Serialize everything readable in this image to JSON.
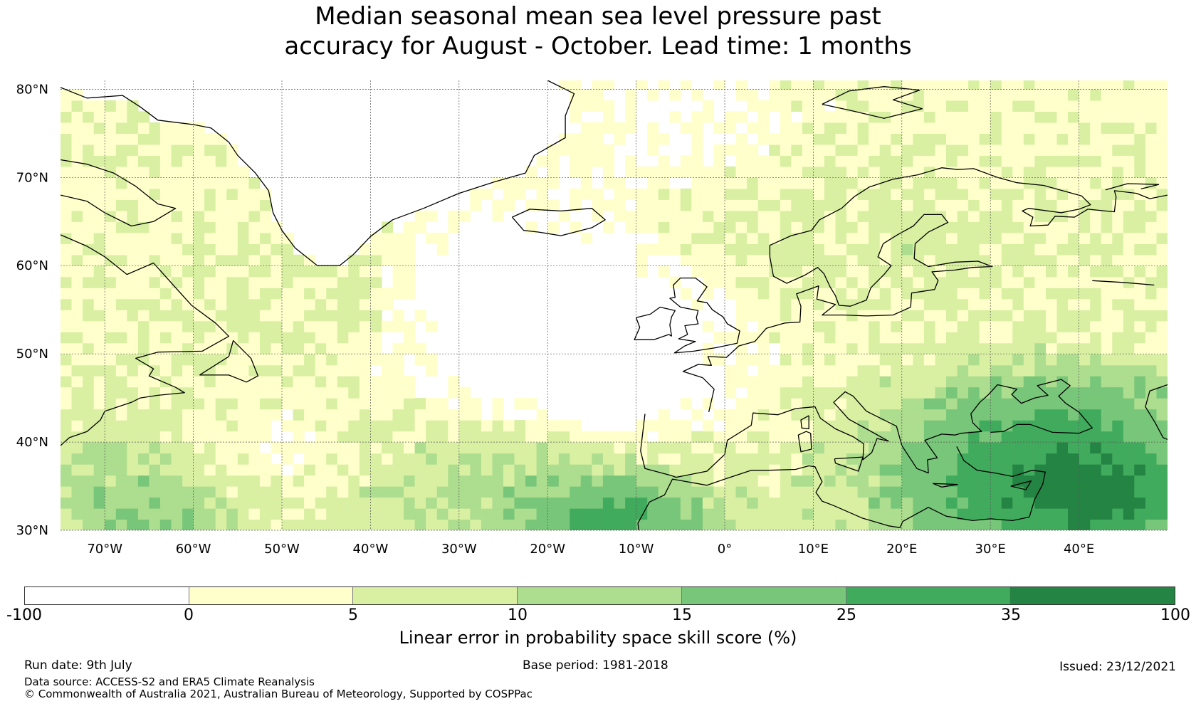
{
  "title": {
    "line1": "Median seasonal mean sea level pressure past",
    "line2": "accuracy for August - October. Lead time: 1 months"
  },
  "map": {
    "lat_labels": [
      "80°N",
      "70°N",
      "60°N",
      "50°N",
      "40°N",
      "30°N"
    ],
    "lon_labels": [
      "70°W",
      "60°W",
      "50°W",
      "40°W",
      "30°W",
      "20°W",
      "10°W",
      "0°",
      "10°E",
      "20°E",
      "30°E",
      "40°E"
    ],
    "lat_range": [
      30,
      81
    ],
    "lon_range": [
      -75,
      50
    ]
  },
  "colorbar": {
    "ticks": [
      "-100",
      "0",
      "5",
      "10",
      "15",
      "25",
      "35",
      "100"
    ],
    "colors": [
      "#ffffff",
      "#ffffcc",
      "#d9f0a3",
      "#addd8e",
      "#78c679",
      "#41ab5d",
      "#238443"
    ],
    "label": "Linear error in probability space skill score (%)"
  },
  "footer": {
    "run_date": "Run date: 9th July",
    "base_period": "Base period: 1981-2018",
    "issued": "Issued: 23/12/2021",
    "data_source": "Data source: ACCESS-S2 and ERA5 Climate Reanalysis",
    "copyright": "© Commonwealth of Australia 2021, Australian Bureau of Meteorology, Supported by COSPPac"
  }
}
